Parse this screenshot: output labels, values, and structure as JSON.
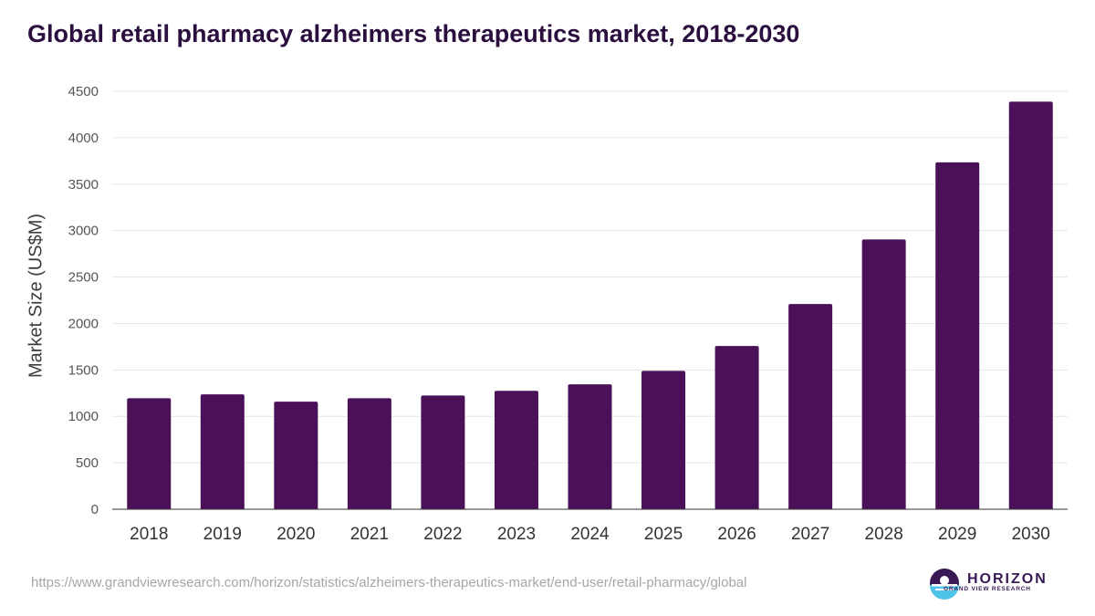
{
  "chart_data": {
    "type": "bar",
    "title": "Global retail pharmacy alzheimers therapeutics market, 2018-2030",
    "xlabel": "",
    "ylabel": "Market Size (US$M)",
    "ylim": [
      0,
      4500
    ],
    "yticks": [
      0,
      500,
      1000,
      1500,
      2000,
      2500,
      3000,
      3500,
      4000,
      4500
    ],
    "grid": true,
    "categories": [
      "2018",
      "2019",
      "2020",
      "2021",
      "2022",
      "2023",
      "2024",
      "2025",
      "2026",
      "2027",
      "2028",
      "2029",
      "2030"
    ],
    "values": [
      1195,
      1237,
      1158,
      1195,
      1225,
      1275,
      1345,
      1490,
      1757,
      2210,
      2905,
      3735,
      4388
    ],
    "bar_color": "#4b1158"
  },
  "footer": {
    "source_url": "https://www.grandviewresearch.com/horizon/statistics/alzheimers-therapeutics-market/end-user/retail-pharmacy/global",
    "brand_name": "HORIZON",
    "brand_sub": "GRAND VIEW RESEARCH"
  },
  "colors": {
    "title": "#2b0f3f",
    "logo_dark": "#3a1a55",
    "logo_accent": "#4fc3e8"
  }
}
